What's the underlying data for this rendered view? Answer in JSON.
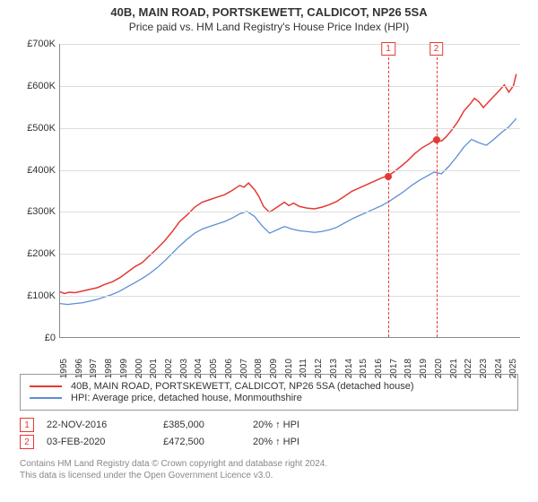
{
  "title": "40B, MAIN ROAD, PORTSKEWETT, CALDICOT, NP26 5SA",
  "subtitle": "Price paid vs. HM Land Registry's House Price Index (HPI)",
  "chart": {
    "type": "line",
    "background_color": "#ffffff",
    "grid_color": "#dddddd",
    "axis_color": "#888888",
    "ylim": [
      0,
      700000
    ],
    "ytick_step": 100000,
    "yticks": [
      "£0",
      "£100K",
      "£200K",
      "£300K",
      "£400K",
      "£500K",
      "£600K",
      "£700K"
    ],
    "xlim": [
      1995,
      2025.75
    ],
    "xticks": [
      "1995",
      "1996",
      "1997",
      "1998",
      "1999",
      "2000",
      "2001",
      "2002",
      "2003",
      "2004",
      "2005",
      "2006",
      "2007",
      "2008",
      "2009",
      "2010",
      "2011",
      "2012",
      "2013",
      "2014",
      "2015",
      "2016",
      "2017",
      "2018",
      "2019",
      "2020",
      "2021",
      "2022",
      "2023",
      "2024",
      "2025"
    ],
    "series": {
      "property": {
        "color": "#e53935",
        "width": 1.5,
        "points": [
          [
            1995,
            108000
          ],
          [
            1995.3,
            104000
          ],
          [
            1995.6,
            107000
          ],
          [
            1996,
            106000
          ],
          [
            1996.5,
            110000
          ],
          [
            1997,
            114000
          ],
          [
            1997.5,
            118000
          ],
          [
            1998,
            126000
          ],
          [
            1998.5,
            132000
          ],
          [
            1999,
            142000
          ],
          [
            1999.5,
            155000
          ],
          [
            2000,
            168000
          ],
          [
            2000.5,
            178000
          ],
          [
            2001,
            195000
          ],
          [
            2001.5,
            212000
          ],
          [
            2002,
            230000
          ],
          [
            2002.5,
            252000
          ],
          [
            2003,
            276000
          ],
          [
            2003.5,
            292000
          ],
          [
            2004,
            310000
          ],
          [
            2004.5,
            322000
          ],
          [
            2005,
            328000
          ],
          [
            2005.5,
            334000
          ],
          [
            2006,
            340000
          ],
          [
            2006.5,
            350000
          ],
          [
            2007,
            362000
          ],
          [
            2007.3,
            358000
          ],
          [
            2007.6,
            368000
          ],
          [
            2008,
            352000
          ],
          [
            2008.3,
            335000
          ],
          [
            2008.6,
            312000
          ],
          [
            2009,
            298000
          ],
          [
            2009.5,
            310000
          ],
          [
            2010,
            322000
          ],
          [
            2010.3,
            314000
          ],
          [
            2010.6,
            320000
          ],
          [
            2011,
            312000
          ],
          [
            2011.5,
            308000
          ],
          [
            2012,
            306000
          ],
          [
            2012.5,
            310000
          ],
          [
            2013,
            316000
          ],
          [
            2013.5,
            324000
          ],
          [
            2014,
            336000
          ],
          [
            2014.5,
            348000
          ],
          [
            2015,
            356000
          ],
          [
            2015.5,
            364000
          ],
          [
            2016,
            372000
          ],
          [
            2016.5,
            380000
          ],
          [
            2016.9,
            385000
          ],
          [
            2017.3,
            394000
          ],
          [
            2017.8,
            408000
          ],
          [
            2018.2,
            420000
          ],
          [
            2018.7,
            438000
          ],
          [
            2019.2,
            452000
          ],
          [
            2019.7,
            462000
          ],
          [
            2020.1,
            472500
          ],
          [
            2020.5,
            468000
          ],
          [
            2020.8,
            478000
          ],
          [
            2021.2,
            495000
          ],
          [
            2021.6,
            515000
          ],
          [
            2022,
            540000
          ],
          [
            2022.4,
            556000
          ],
          [
            2022.7,
            570000
          ],
          [
            2023,
            562000
          ],
          [
            2023.3,
            548000
          ],
          [
            2023.6,
            560000
          ],
          [
            2024,
            575000
          ],
          [
            2024.4,
            590000
          ],
          [
            2024.7,
            602000
          ],
          [
            2025,
            585000
          ],
          [
            2025.3,
            600000
          ],
          [
            2025.5,
            628000
          ]
        ]
      },
      "hpi": {
        "color": "#5b8fd6",
        "width": 1.3,
        "points": [
          [
            1995,
            80000
          ],
          [
            1995.5,
            78000
          ],
          [
            1996,
            80000
          ],
          [
            1996.5,
            82000
          ],
          [
            1997,
            86000
          ],
          [
            1997.5,
            90000
          ],
          [
            1998,
            96000
          ],
          [
            1998.5,
            102000
          ],
          [
            1999,
            110000
          ],
          [
            1999.5,
            120000
          ],
          [
            2000,
            130000
          ],
          [
            2000.5,
            140000
          ],
          [
            2001,
            152000
          ],
          [
            2001.5,
            166000
          ],
          [
            2002,
            182000
          ],
          [
            2002.5,
            200000
          ],
          [
            2003,
            218000
          ],
          [
            2003.5,
            234000
          ],
          [
            2004,
            248000
          ],
          [
            2004.5,
            258000
          ],
          [
            2005,
            264000
          ],
          [
            2005.5,
            270000
          ],
          [
            2006,
            276000
          ],
          [
            2006.5,
            284000
          ],
          [
            2007,
            294000
          ],
          [
            2007.5,
            300000
          ],
          [
            2008,
            288000
          ],
          [
            2008.5,
            266000
          ],
          [
            2009,
            248000
          ],
          [
            2009.5,
            256000
          ],
          [
            2010,
            264000
          ],
          [
            2010.5,
            258000
          ],
          [
            2011,
            254000
          ],
          [
            2011.5,
            252000
          ],
          [
            2012,
            250000
          ],
          [
            2012.5,
            252000
          ],
          [
            2013,
            256000
          ],
          [
            2013.5,
            262000
          ],
          [
            2014,
            272000
          ],
          [
            2014.5,
            282000
          ],
          [
            2015,
            290000
          ],
          [
            2015.5,
            298000
          ],
          [
            2016,
            306000
          ],
          [
            2016.5,
            314000
          ],
          [
            2017,
            324000
          ],
          [
            2017.5,
            336000
          ],
          [
            2018,
            348000
          ],
          [
            2018.5,
            362000
          ],
          [
            2019,
            374000
          ],
          [
            2019.5,
            384000
          ],
          [
            2020,
            394000
          ],
          [
            2020.5,
            390000
          ],
          [
            2021,
            408000
          ],
          [
            2021.5,
            430000
          ],
          [
            2022,
            454000
          ],
          [
            2022.5,
            472000
          ],
          [
            2023,
            464000
          ],
          [
            2023.5,
            458000
          ],
          [
            2024,
            472000
          ],
          [
            2024.5,
            488000
          ],
          [
            2025,
            502000
          ],
          [
            2025.5,
            522000
          ]
        ]
      }
    },
    "sale_markers": [
      {
        "n": "1",
        "x": 2016.9,
        "y": 385000
      },
      {
        "n": "2",
        "x": 2020.1,
        "y": 472500
      }
    ]
  },
  "legend": {
    "items": [
      {
        "color": "#e53935",
        "label": "40B, MAIN ROAD, PORTSKEWETT, CALDICOT, NP26 5SA (detached house)"
      },
      {
        "color": "#5b8fd6",
        "label": "HPI: Average price, detached house, Monmouthshire"
      }
    ]
  },
  "sales": [
    {
      "n": "1",
      "date": "22-NOV-2016",
      "price": "£385,000",
      "pct": "20% ↑ HPI"
    },
    {
      "n": "2",
      "date": "03-FEB-2020",
      "price": "£472,500",
      "pct": "20% ↑ HPI"
    }
  ],
  "footer": {
    "l1": "Contains HM Land Registry data © Crown copyright and database right 2024.",
    "l2": "This data is licensed under the Open Government Licence v3.0."
  }
}
